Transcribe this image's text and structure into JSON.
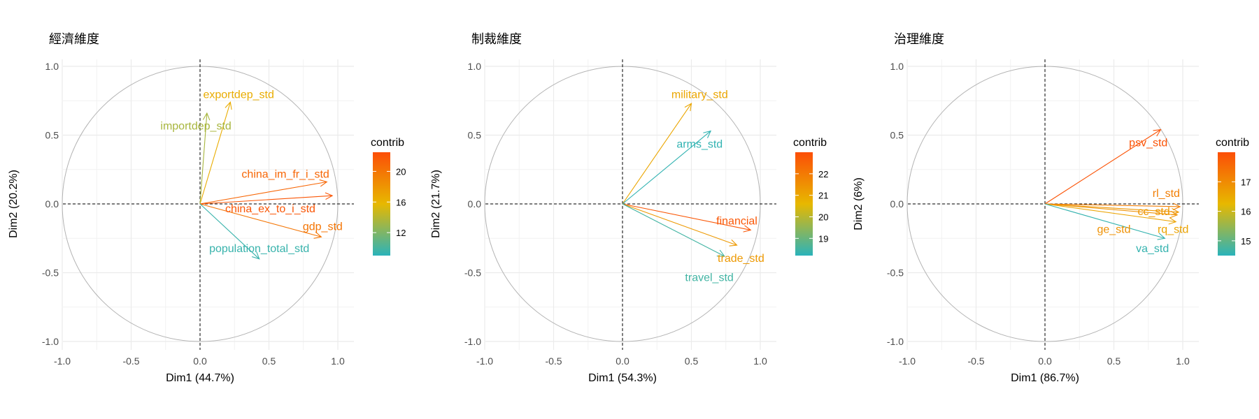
{
  "chart_data": [
    {
      "type": "scatter",
      "title": "經濟維度",
      "xlabel": "Dim1 (44.7%)",
      "ylabel": "Dim2 (20.2%)",
      "xlim": [
        -1.0,
        1.0
      ],
      "ylim": [
        -1.0,
        1.0
      ],
      "x_ticks": [
        "-1.0",
        "-0.5",
        "0.0",
        "0.5",
        "1.0"
      ],
      "y_ticks": [
        "-1.0",
        "-0.5",
        "0.0",
        "0.5",
        "1.0"
      ],
      "grid": true,
      "legend": {
        "title": "contrib",
        "placement": "right",
        "range": [
          9,
          22.5
        ],
        "ticks": [
          "12",
          "16",
          "20"
        ]
      },
      "vectors": [
        {
          "name": "exportdep_std",
          "x": 0.22,
          "y": 0.74,
          "contrib": 16.5
        },
        {
          "name": "importdep_std",
          "x": 0.05,
          "y": 0.66,
          "contrib": 13.5
        },
        {
          "name": "china_im_fr_i_std",
          "x": 0.92,
          "y": 0.16,
          "contrib": 21.0
        },
        {
          "name": "china_ex_to_i_std",
          "x": 0.96,
          "y": 0.06,
          "contrib": 22.0
        },
        {
          "name": "gdp_std",
          "x": 0.88,
          "y": -0.24,
          "contrib": 20.0
        },
        {
          "name": "population_total_std",
          "x": 0.43,
          "y": -0.4,
          "contrib": 9.5
        }
      ],
      "labels": [
        {
          "name": "exportdep_std",
          "x": 0.28,
          "y": 0.8
        },
        {
          "name": "importdep_std",
          "x": -0.03,
          "y": 0.57
        },
        {
          "name": "china_im_fr_i_std",
          "x": 0.62,
          "y": 0.22
        },
        {
          "name": "china_ex_to_i_std",
          "x": 0.51,
          "y": -0.03
        },
        {
          "name": "gdp_std",
          "x": 0.89,
          "y": -0.16
        },
        {
          "name": "population_total_std",
          "x": 0.43,
          "y": -0.32
        }
      ]
    },
    {
      "type": "scatter",
      "title": "制裁維度",
      "xlabel": "Dim1 (54.3%)",
      "ylabel": "Dim2 (21.7%)",
      "xlim": [
        -1.0,
        1.0
      ],
      "ylim": [
        -1.0,
        1.0
      ],
      "x_ticks": [
        "-1.0",
        "-0.5",
        "0.0",
        "0.5",
        "1.0"
      ],
      "y_ticks": [
        "-1.0",
        "-0.5",
        "0.0",
        "0.5",
        "1.0"
      ],
      "grid": true,
      "legend": {
        "title": "contrib",
        "placement": "right",
        "range": [
          18.2,
          23.0
        ],
        "ticks": [
          "19",
          "20",
          "21",
          "22"
        ]
      },
      "vectors": [
        {
          "name": "military_std",
          "x": 0.5,
          "y": 0.73,
          "contrib": 21.0
        },
        {
          "name": "arms_std",
          "x": 0.64,
          "y": 0.53,
          "contrib": 18.3
        },
        {
          "name": "financial",
          "x": 0.93,
          "y": -0.19,
          "contrib": 22.8
        },
        {
          "name": "trade_std",
          "x": 0.83,
          "y": -0.3,
          "contrib": 21.3
        },
        {
          "name": "travel_std",
          "x": 0.74,
          "y": -0.38,
          "contrib": 18.5
        }
      ],
      "labels": [
        {
          "name": "military_std",
          "x": 0.56,
          "y": 0.8
        },
        {
          "name": "arms_std",
          "x": 0.56,
          "y": 0.44
        },
        {
          "name": "financial",
          "x": 0.83,
          "y": -0.12
        },
        {
          "name": "trade_std",
          "x": 0.86,
          "y": -0.39
        },
        {
          "name": "travel_std",
          "x": 0.63,
          "y": -0.53
        }
      ]
    },
    {
      "type": "scatter",
      "title": "治理維度",
      "xlabel": "Dim1 (86.7%)",
      "ylabel": "Dim2 (6%)",
      "xlim": [
        -1.0,
        1.0
      ],
      "ylim": [
        -1.0,
        1.0
      ],
      "x_ticks": [
        "-1.0",
        "-0.5",
        "0.0",
        "0.5",
        "1.0"
      ],
      "y_ticks": [
        "-1.0",
        "-0.5",
        "0.0",
        "0.5",
        "1.0"
      ],
      "grid": true,
      "legend": {
        "title": "contrib",
        "placement": "right",
        "range": [
          14.5,
          18.0
        ],
        "ticks": [
          "15",
          "16",
          "17"
        ]
      },
      "vectors": [
        {
          "name": "psv_std",
          "x": 0.84,
          "y": 0.54,
          "contrib": 17.9
        },
        {
          "name": "rl_std",
          "x": 0.98,
          "y": -0.02,
          "contrib": 17.2
        },
        {
          "name": "cc_std",
          "x": 0.97,
          "y": -0.06,
          "contrib": 16.8
        },
        {
          "name": "rq_std",
          "x": 0.95,
          "y": -0.13,
          "contrib": 16.6
        },
        {
          "name": "ge_std",
          "x": 0.96,
          "y": -0.08,
          "contrib": 16.9
        },
        {
          "name": "va_std",
          "x": 0.87,
          "y": -0.25,
          "contrib": 14.6
        }
      ],
      "labels": [
        {
          "name": "psv_std",
          "x": 0.75,
          "y": 0.45
        },
        {
          "name": "rl_std",
          "x": 0.88,
          "y": 0.08
        },
        {
          "name": "cc_std",
          "x": 0.79,
          "y": -0.05
        },
        {
          "name": "ge_std",
          "x": 0.5,
          "y": -0.18
        },
        {
          "name": "rq_std",
          "x": 0.93,
          "y": -0.18
        },
        {
          "name": "va_std",
          "x": 0.78,
          "y": -0.32
        }
      ]
    }
  ],
  "colors": {
    "low": "#2AB3BA",
    "mid": "#E7B800",
    "high": "#FC4E07"
  }
}
